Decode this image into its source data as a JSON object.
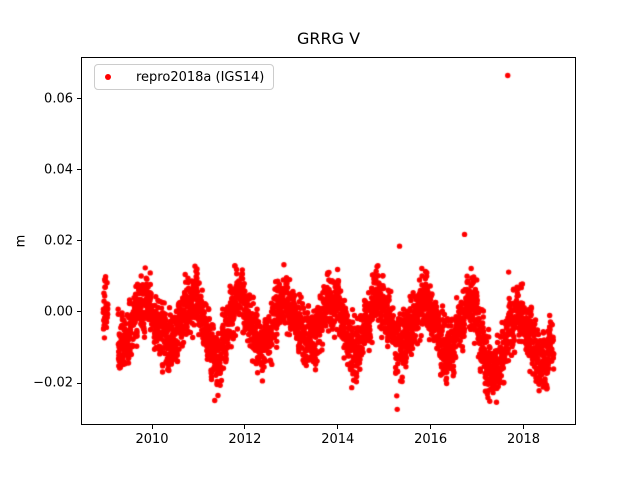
{
  "chart_data": {
    "type": "scatter",
    "title": "GRRG V",
    "xlabel": "",
    "ylabel": "m",
    "xlim": [
      2008.47,
      2019.13
    ],
    "ylim": [
      -0.0318,
      0.0717
    ],
    "grid": false,
    "xticks": [
      {
        "value": 2010,
        "label": "2010"
      },
      {
        "value": 2012,
        "label": "2012"
      },
      {
        "value": 2014,
        "label": "2014"
      },
      {
        "value": 2016,
        "label": "2016"
      },
      {
        "value": 2018,
        "label": "2018"
      }
    ],
    "yticks": [
      {
        "value": -0.02,
        "label": "−0.02"
      },
      {
        "value": 0.0,
        "label": "0.00"
      },
      {
        "value": 0.02,
        "label": "0.02"
      },
      {
        "value": 0.04,
        "label": "0.04"
      },
      {
        "value": 0.06,
        "label": "0.06"
      }
    ],
    "legend": {
      "position": "upper-left",
      "entries": [
        {
          "label": "repro2018a (IGS14)",
          "marker": "point",
          "color": "#ff0000"
        }
      ]
    },
    "colors": {
      "marker": "#ff0000",
      "text": "#000000",
      "axes_edge": "#000000",
      "background": "#ffffff",
      "legend_border": "#cccccc"
    },
    "series": [
      {
        "name": "repro2018a (IGS14)",
        "color": "#ff0000",
        "marker": "point",
        "marker_radius_px": 2.7,
        "samples_per_year": 365,
        "segments": [
          [
            2008.95,
            2009.05
          ],
          [
            2009.27,
            2018.65
          ]
        ],
        "seasonal_model": {
          "description": "daily vertical position residuals, annual cycle: peak near year fraction 0.87, trough near 0.37",
          "phase_peak_fraction": 0.87,
          "noise_sd": 0.0042,
          "noise_clip": 0.0102,
          "ar_coeff": 0.45,
          "seed": 42,
          "year_params": {
            "2008": {
              "mean": -0.002,
              "amplitude": 0.0062
            },
            "2009": {
              "mean": -0.003,
              "amplitude": 0.0062
            },
            "2010": {
              "mean": -0.003,
              "amplitude": 0.006
            },
            "2011": {
              "mean": -0.0045,
              "amplitude": 0.0085
            },
            "2012": {
              "mean": -0.003,
              "amplitude": 0.0062
            },
            "2013": {
              "mean": -0.0025,
              "amplitude": 0.006
            },
            "2014": {
              "mean": -0.003,
              "amplitude": 0.0068
            },
            "2015": {
              "mean": -0.0035,
              "amplitude": 0.0062
            },
            "2016": {
              "mean": -0.004,
              "amplitude": 0.006
            },
            "2017": {
              "mean": -0.009,
              "amplitude": 0.0085
            },
            "2018": {
              "mean": -0.007,
              "amplitude": 0.0065
            }
          }
        },
        "outliers": [
          [
            2011.35,
            -0.0249
          ],
          [
            2011.4,
            -0.0204
          ],
          [
            2011.42,
            -0.0235
          ],
          [
            2014.3,
            -0.0213
          ],
          [
            2015.27,
            -0.0236
          ],
          [
            2015.28,
            -0.0274
          ],
          [
            2015.33,
            0.0185
          ],
          [
            2016.73,
            0.0218
          ],
          [
            2017.66,
            0.0665
          ],
          [
            2017.68,
            0.0112
          ]
        ]
      }
    ]
  }
}
